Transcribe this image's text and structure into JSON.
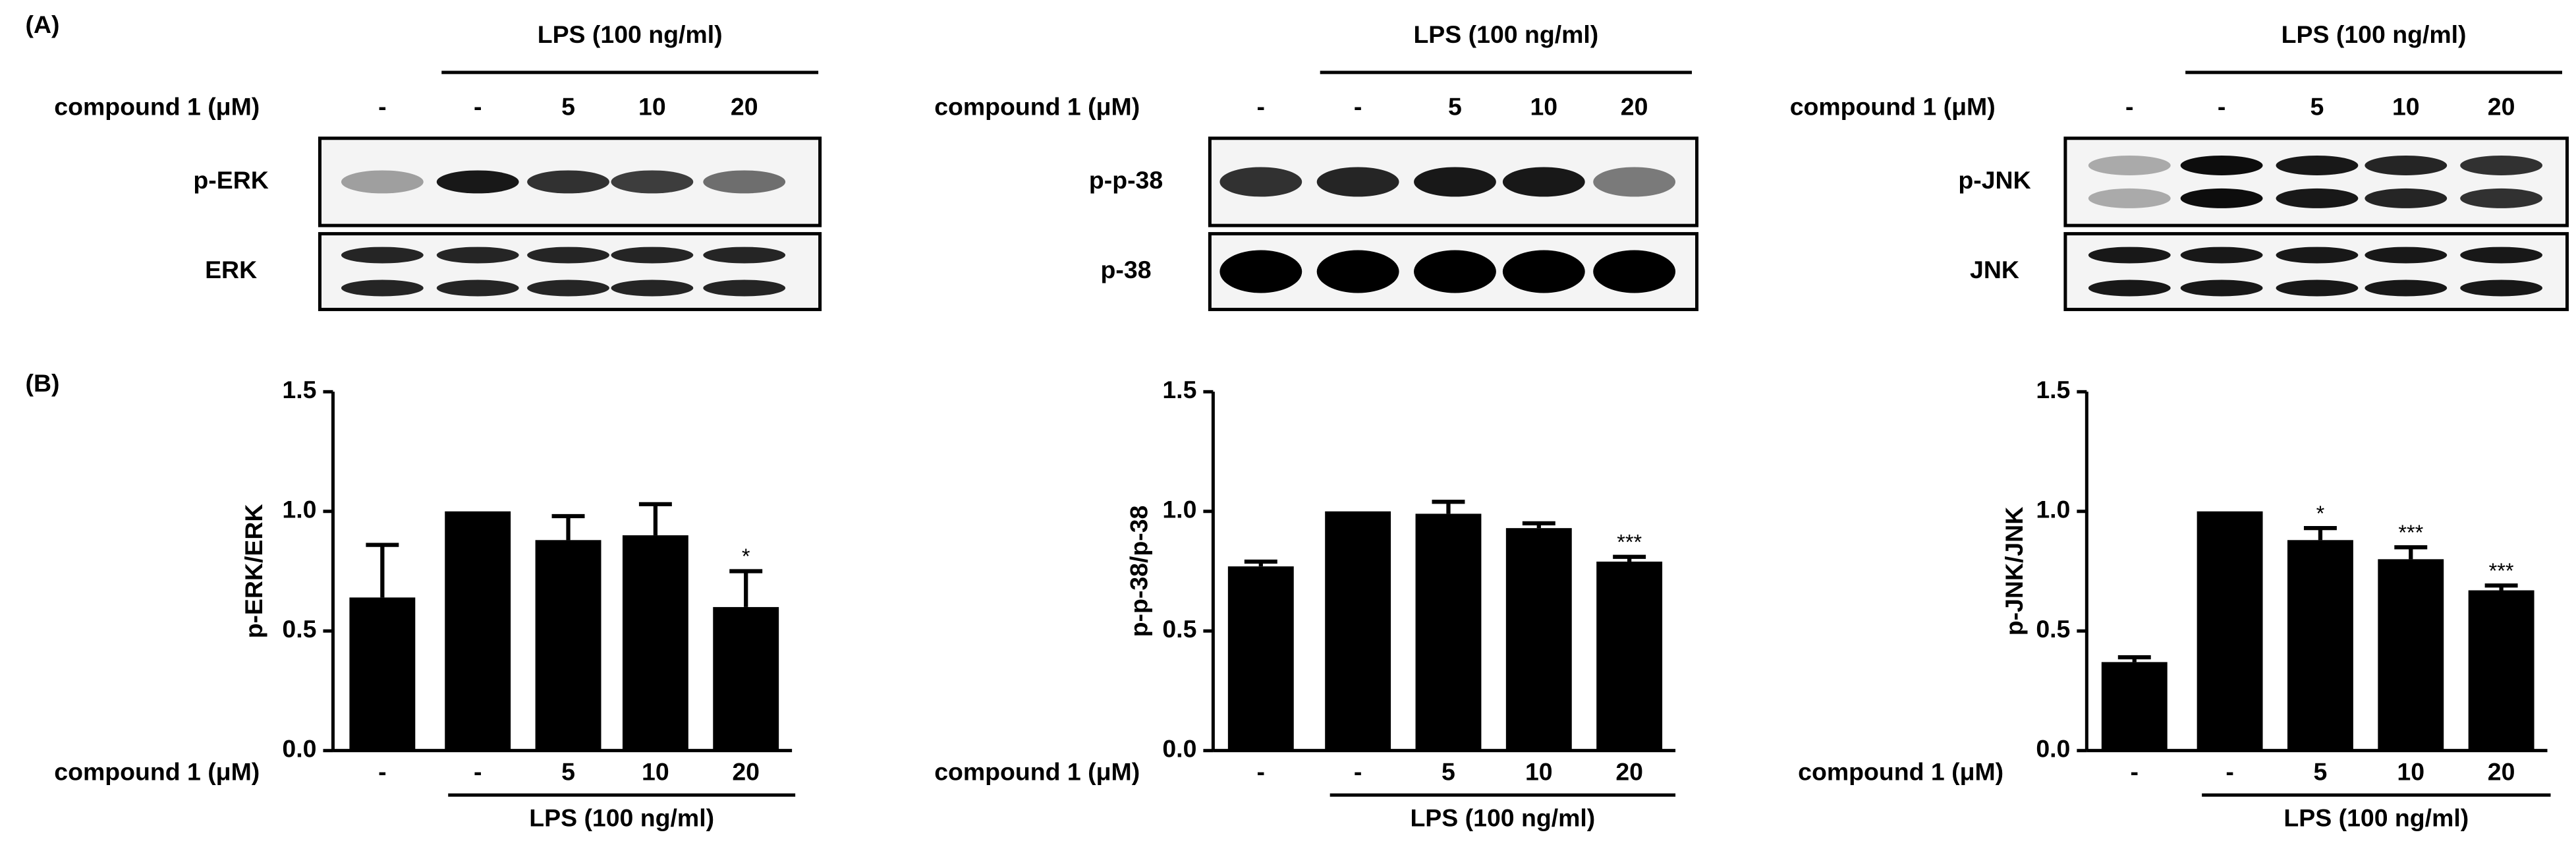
{
  "panel_a": {
    "label": "(A)",
    "groups": [
      {
        "group_label": "LPS (100 ng/ml)",
        "row_label": "compound 1 (μM)",
        "lanes": [
          "-",
          "-",
          "5",
          "10",
          "20"
        ],
        "blots": [
          "p-ERK",
          "ERK"
        ]
      },
      {
        "group_label": "LPS (100 ng/ml)",
        "row_label": "compound 1 (μM)",
        "lanes": [
          "-",
          "-",
          "5",
          "10",
          "20"
        ],
        "blots": [
          "p-p-38",
          "p-38"
        ]
      },
      {
        "group_label": "LPS (100 ng/ml)",
        "row_label": "compound 1 (μM)",
        "lanes": [
          "-",
          "-",
          "5",
          "10",
          "20"
        ],
        "blots": [
          "p-JNK",
          "JNK"
        ]
      }
    ]
  },
  "panel_b": {
    "label": "(B)"
  },
  "chart_data": [
    {
      "type": "bar",
      "y_label": "p-ERK/ERK",
      "categories": [
        "-",
        "-",
        "5",
        "10",
        "20"
      ],
      "values": [
        0.64,
        1.0,
        0.88,
        0.9,
        0.6
      ],
      "errors": [
        0.22,
        null,
        0.1,
        0.13,
        0.15
      ],
      "annotations": [
        null,
        null,
        null,
        null,
        "*"
      ],
      "color": "#000000",
      "ylim": [
        0,
        1.5
      ],
      "yticks": [
        {
          "value": 0,
          "label": "0.0"
        },
        0.5,
        {
          "value": 1,
          "label": "1.0"
        },
        1.5
      ],
      "row_label": "compound 1 (μM)",
      "group_label": "LPS (100 ng/ml)"
    },
    {
      "type": "bar",
      "y_label": "p-p-38/p-38",
      "categories": [
        "-",
        "-",
        "5",
        "10",
        "20"
      ],
      "values": [
        0.77,
        1.0,
        0.99,
        0.93,
        0.79
      ],
      "errors": [
        0.02,
        null,
        0.05,
        0.02,
        0.02
      ],
      "annotations": [
        null,
        null,
        null,
        null,
        "***"
      ],
      "color": "#000000",
      "ylim": [
        0,
        1.5
      ],
      "yticks": [
        {
          "value": 0,
          "label": "0.0"
        },
        0.5,
        {
          "value": 1,
          "label": "1.0"
        },
        1.5
      ],
      "row_label": "compound 1 (μM)",
      "group_label": "LPS (100 ng/ml)"
    },
    {
      "type": "bar",
      "y_label": "p-JNK/JNK",
      "categories": [
        "-",
        "-",
        "5",
        "10",
        "20"
      ],
      "values": [
        0.37,
        1.0,
        0.88,
        0.8,
        0.67
      ],
      "errors": [
        0.02,
        null,
        0.05,
        0.05,
        0.02
      ],
      "annotations": [
        null,
        null,
        "*",
        "***",
        "***"
      ],
      "color": "#000000",
      "ylim": [
        0,
        1.5
      ],
      "yticks": [
        {
          "value": 0,
          "label": "0.0"
        },
        0.5,
        {
          "value": 1,
          "label": "1.0"
        },
        1.5
      ],
      "row_label": "compound 1 (μM)",
      "group_label": "LPS (100 ng/ml)"
    }
  ]
}
